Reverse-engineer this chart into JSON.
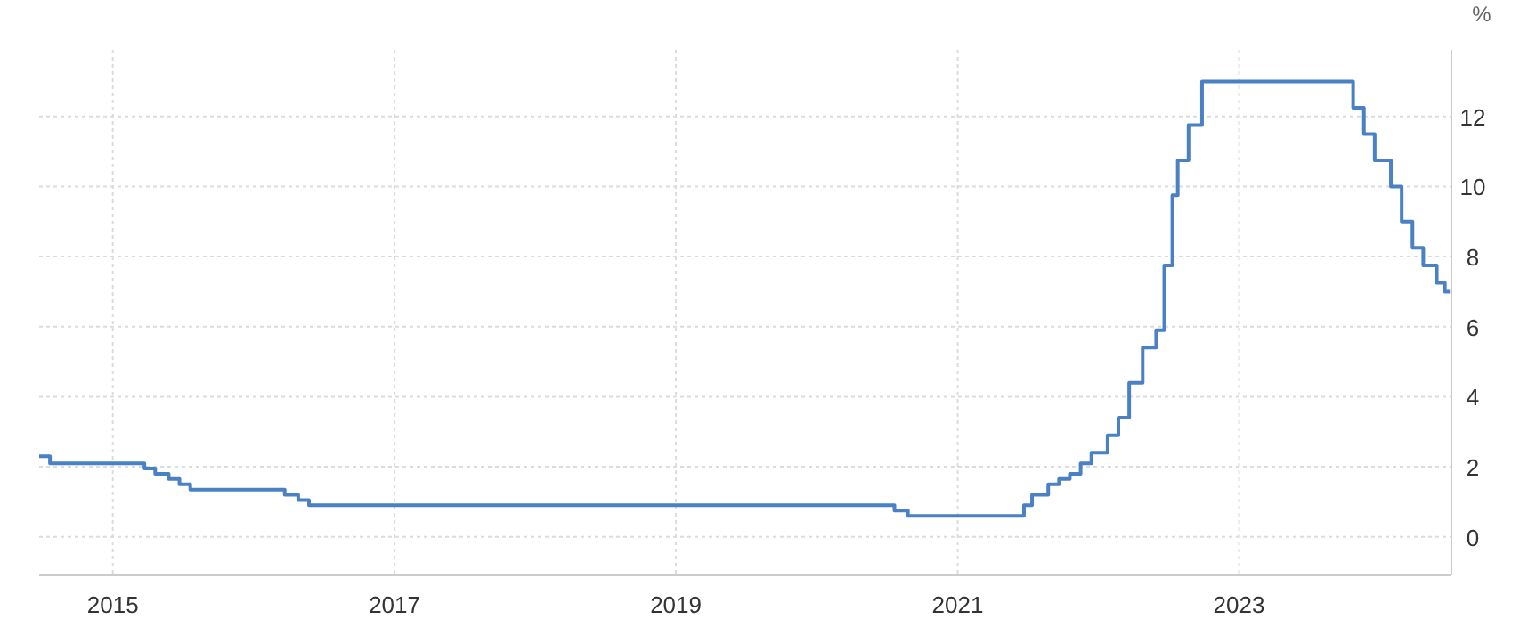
{
  "chart_data": {
    "type": "step",
    "ylabel": "%",
    "x": [
      "2014-06-24",
      "2014-07-22",
      "2015-03-24",
      "2015-04-21",
      "2015-05-26",
      "2015-06-23",
      "2015-07-21",
      "2016-03-22",
      "2016-04-26",
      "2016-05-24",
      "2020-07-21",
      "2020-08-25",
      "2021-06-22",
      "2021-07-13",
      "2021-08-24",
      "2021-09-21",
      "2021-10-19",
      "2021-11-16",
      "2021-12-14",
      "2022-01-25",
      "2022-02-22",
      "2022-03-22",
      "2022-04-26",
      "2022-05-31",
      "2022-06-21",
      "2022-07-12",
      "2022-07-26",
      "2022-08-23",
      "2022-09-27",
      "2023-10-24",
      "2023-11-21",
      "2023-12-19",
      "2024-01-30",
      "2024-02-27",
      "2024-03-26",
      "2024-04-23",
      "2024-05-28",
      "2024-06-18",
      "2024-07-01"
    ],
    "series": [
      {
        "color": "#4a80c4",
        "values": [
          2.3,
          2.1,
          1.95,
          1.8,
          1.65,
          1.5,
          1.35,
          1.2,
          1.05,
          0.9,
          0.75,
          0.6,
          0.9,
          1.2,
          1.5,
          1.65,
          1.8,
          2.1,
          2.4,
          2.9,
          3.4,
          4.4,
          5.4,
          5.9,
          7.75,
          9.75,
          10.75,
          11.75,
          13,
          12.25,
          11.5,
          10.75,
          10,
          9,
          8.25,
          7.75,
          7.25,
          7,
          7
        ]
      }
    ],
    "xlim": [
      "2014-06-24",
      "2024-07-05"
    ],
    "xticks": [
      {
        "value": "2015",
        "label": "2015"
      },
      {
        "value": "2017",
        "label": "2017"
      },
      {
        "value": "2019",
        "label": "2019"
      },
      {
        "value": "2021",
        "label": "2021"
      },
      {
        "value": "2023",
        "label": "2023"
      }
    ],
    "ylim": [
      -1.1,
      13.9
    ],
    "yticks": [
      0,
      2,
      4,
      6,
      8,
      10,
      12
    ],
    "grid": true,
    "line_style": "solid"
  }
}
